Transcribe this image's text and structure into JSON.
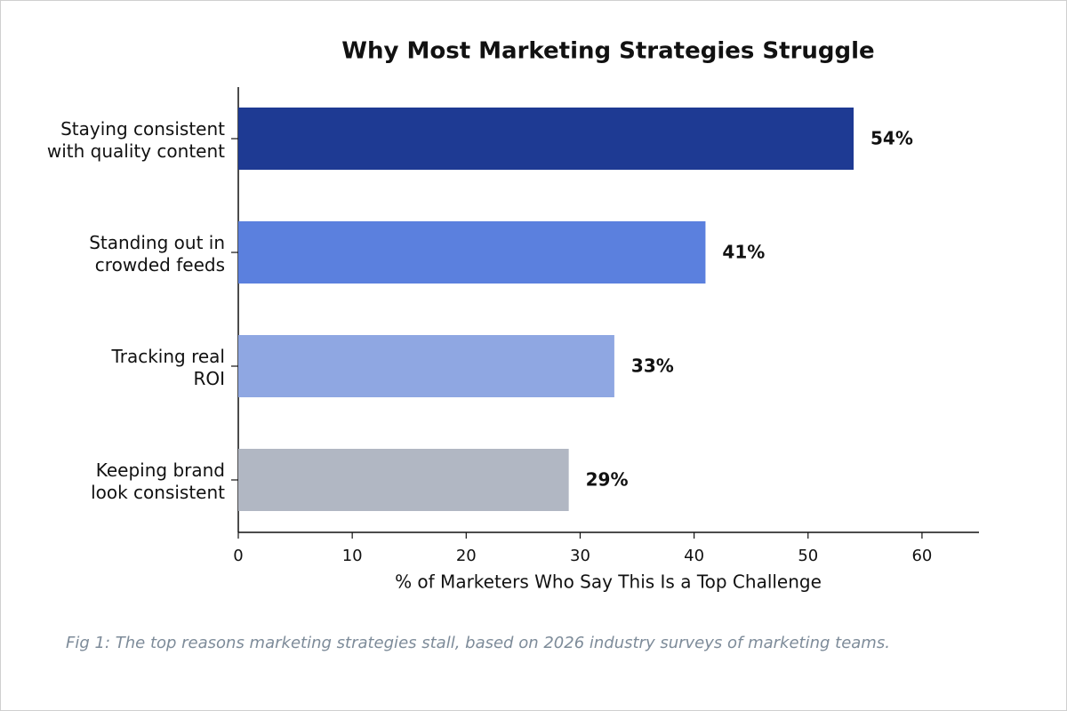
{
  "chart_data": {
    "type": "barh",
    "title": "Why Most Marketing Strategies Struggle",
    "categories": [
      "Staying consistent\nwith quality content",
      "Standing out in\ncrowded feeds",
      "Tracking real\nROI",
      "Keeping brand\nlook consistent"
    ],
    "values": [
      54,
      41,
      33,
      29
    ],
    "value_labels": [
      "54%",
      "41%",
      "33%",
      "29%"
    ],
    "colors": [
      "#1e3a93",
      "#5b80de",
      "#8fa7e2",
      "#b1b7c3"
    ],
    "xlabel": "% of Marketers Who Say This Is a Top Challenge",
    "xlim": [
      0,
      65
    ],
    "xticks": [
      0,
      10,
      20,
      30,
      40,
      50,
      60
    ],
    "caption": "Fig 1: The top reasons marketing strategies stall, based on 2026 industry surveys of marketing teams."
  }
}
